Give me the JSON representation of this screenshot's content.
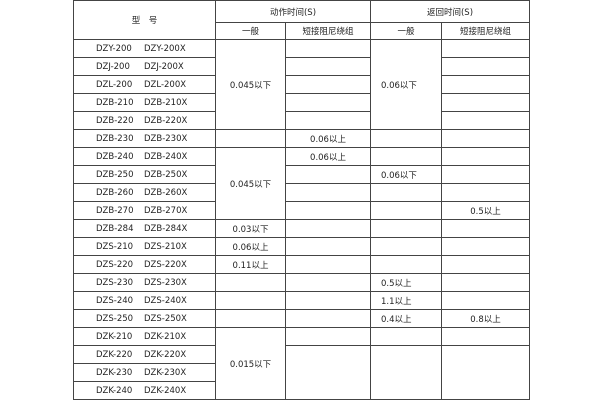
{
  "header": {
    "model": "型　号",
    "action_time": "动作时间(S)",
    "return_time": "返回时间(S)",
    "general": "一般",
    "short_damping": "短接阻尼绕组"
  },
  "rows": [
    {
      "model": [
        "DZY-200",
        "DZY-200X"
      ],
      "cells": [
        "0.045以下",
        "",
        "0.06以下",
        ""
      ]
    },
    {
      "model": [
        "DZJ-200",
        "DZJ-200X"
      ],
      "cells": [
        null,
        "",
        null,
        ""
      ]
    },
    {
      "model": [
        "DZL-200",
        "DZL-200X"
      ],
      "cells": [
        null,
        "",
        null,
        ""
      ]
    },
    {
      "model": [
        "DZB-210",
        "DZB-210X"
      ],
      "cells": [
        null,
        "",
        null,
        ""
      ]
    },
    {
      "model": [
        "DZB-220",
        "DZB-220X"
      ],
      "cells": [
        null,
        "",
        null,
        ""
      ]
    },
    {
      "model": [
        "DZB-230",
        "DZB-230X"
      ],
      "cells": [
        "",
        "0.06以上",
        "",
        ""
      ]
    },
    {
      "model": [
        "DZB-240",
        "DZB-240X"
      ],
      "cells": [
        "0.045以下",
        "0.06以上",
        "",
        ""
      ]
    },
    {
      "model": [
        "DZB-250",
        "DZB-250X"
      ],
      "cells": [
        null,
        "",
        "0.06以下",
        ""
      ]
    },
    {
      "model": [
        "DZB-260",
        "DZB-260X"
      ],
      "cells": [
        null,
        "",
        "",
        ""
      ]
    },
    {
      "model": [
        "DZB-270",
        "DZB-270X"
      ],
      "cells": [
        null,
        "",
        "",
        "0.5以上"
      ]
    },
    {
      "model": [
        "DZB-284",
        "DZB-284X"
      ],
      "cells": [
        "0.03以下",
        "",
        "",
        ""
      ]
    },
    {
      "model": [
        "DZS-210",
        "DZS-210X"
      ],
      "cells": [
        "0.06以上",
        "",
        "",
        ""
      ]
    },
    {
      "model": [
        "DZS-220",
        "DZS-220X"
      ],
      "cells": [
        "0.11以上",
        "",
        "",
        ""
      ]
    },
    {
      "model": [
        "DZS-230",
        "DZS-230X"
      ],
      "cells": [
        "",
        "",
        "0.5以上",
        ""
      ]
    },
    {
      "model": [
        "DZS-240",
        "DZS-240X"
      ],
      "cells": [
        "",
        "",
        "1.1以上",
        ""
      ]
    },
    {
      "model": [
        "DZS-250",
        "DZS-250X"
      ],
      "cells": [
        "",
        "",
        "0.4以上",
        "0.8以上"
      ]
    },
    {
      "model": [
        "DZK-210",
        "DZK-210X"
      ],
      "cells": [
        "0.015以下",
        "",
        "",
        ""
      ]
    },
    {
      "model": [
        "DZK-220",
        "DZK-220X"
      ],
      "cells": [
        null,
        "",
        "",
        ""
      ]
    },
    {
      "model": [
        "DZK-230",
        "DZK-230X"
      ],
      "cells": [
        null,
        null,
        null,
        null
      ]
    },
    {
      "model": [
        "DZK-240",
        "DZK-240X"
      ],
      "cells": [
        null,
        null,
        null,
        null
      ]
    }
  ]
}
